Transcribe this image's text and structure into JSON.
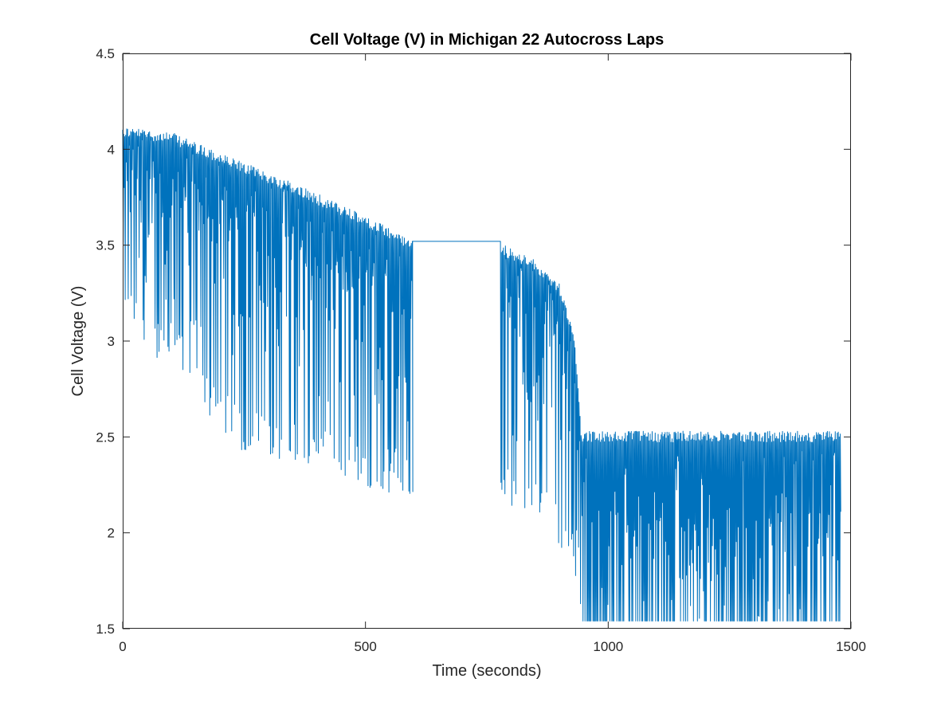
{
  "chart_data": {
    "type": "line",
    "title": "Cell Voltage (V) in Michigan 22 Autocross Laps",
    "xlabel": "Time (seconds)",
    "ylabel": "Cell Voltage (V)",
    "xlim": [
      0,
      1500
    ],
    "ylim": [
      1.5,
      4.5
    ],
    "xticks": [
      0,
      500,
      1000,
      1500
    ],
    "xtick_labels": [
      "0",
      "500",
      "1000",
      "1500"
    ],
    "yticks": [
      1.5,
      2,
      2.5,
      3,
      3.5,
      4,
      4.5
    ],
    "ytick_labels": [
      "1.5",
      "2",
      "2.5",
      "3",
      "3.5",
      "4",
      "4.5"
    ],
    "grid": false,
    "box": true,
    "line_color": "#0072BD",
    "series": [
      {
        "segments": [
          {
            "description": "first run: oscillating voltage, upper and lower envelopes decline",
            "x_range": [
              0,
              597
            ],
            "upper_envelope": [
              [
                0,
                4.12
              ],
              [
                100,
                4.09
              ],
              [
                200,
                3.98
              ],
              [
                300,
                3.88
              ],
              [
                400,
                3.77
              ],
              [
                500,
                3.65
              ],
              [
                597,
                3.53
              ]
            ],
            "lower_envelope": [
              [
                0,
                3.05
              ],
              [
                50,
                2.92
              ],
              [
                100,
                2.85
              ],
              [
                170,
                2.62
              ],
              [
                230,
                2.42
              ],
              [
                300,
                2.38
              ],
              [
                400,
                2.3
              ],
              [
                500,
                2.24
              ],
              [
                597,
                2.17
              ]
            ]
          },
          {
            "description": "flat rest period",
            "x_range": [
              597,
              778
            ],
            "y": 3.52
          },
          {
            "description": "second run: oscillating voltage, steep knee near 930 s",
            "x_range": [
              778,
              945
            ],
            "upper_envelope": [
              [
                778,
                3.51
              ],
              [
                850,
                3.42
              ],
              [
                900,
                3.3
              ],
              [
                930,
                3.05
              ],
              [
                945,
                2.53
              ]
            ],
            "lower_envelope": [
              [
                778,
                2.16
              ],
              [
                850,
                2.04
              ],
              [
                900,
                1.92
              ],
              [
                930,
                1.75
              ],
              [
                945,
                1.55
              ]
            ]
          },
          {
            "description": "depleted: oscillation between about 1.54 V and 2.53 V",
            "x_range": [
              945,
              1480
            ],
            "upper": 2.53,
            "lower": 1.54
          }
        ]
      }
    ]
  }
}
